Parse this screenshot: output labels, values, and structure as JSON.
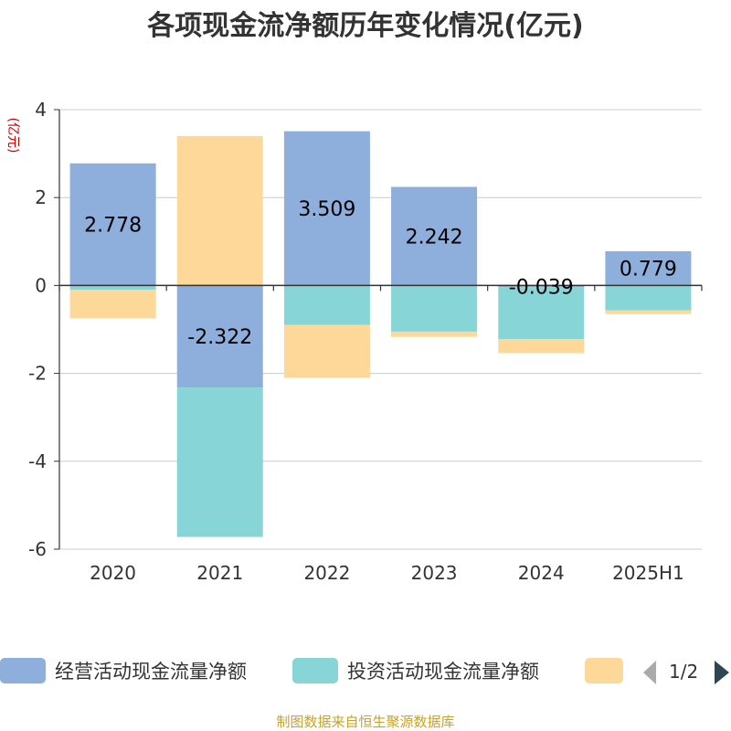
{
  "chart_data": {
    "type": "bar",
    "stacked": true,
    "title": "各项现金流净额历年变化情况(亿元)",
    "ylabel": "(亿元)",
    "ylim": [
      -6,
      4
    ],
    "yticks": [
      4,
      2,
      0,
      -2,
      -4,
      -6
    ],
    "grid": true,
    "categories": [
      "2020",
      "2021",
      "2022",
      "2023",
      "2024",
      "2025H1"
    ],
    "series": [
      {
        "name": "经营活动现金流量净额",
        "color": "#8eaedb",
        "values": [
          2.778,
          -2.322,
          3.509,
          2.242,
          -0.039,
          0.779
        ],
        "labels": [
          "2.778",
          "-2.322",
          "3.509",
          "2.242",
          "-0.039",
          "0.779"
        ]
      },
      {
        "name": "投资活动现金流量净额",
        "color": "#88d5d8",
        "values": [
          -0.1,
          -3.4,
          -0.9,
          -1.05,
          -1.18,
          -0.57
        ]
      },
      {
        "name": "",
        "color": "#fdd898",
        "values": [
          -0.65,
          3.4,
          -1.2,
          -0.12,
          -0.32,
          -0.08
        ]
      }
    ],
    "legend": {
      "position": "bottom",
      "page": "1/2"
    }
  },
  "source": "制图数据来自恒生聚源数据库"
}
